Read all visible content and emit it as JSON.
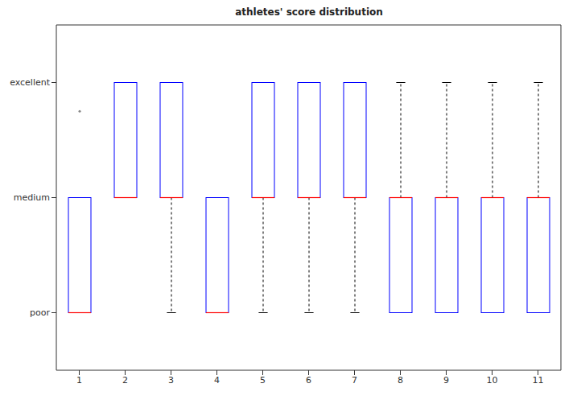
{
  "chart_data": {
    "type": "box",
    "title": "athletes' score distribution",
    "categories": [
      "1",
      "2",
      "3",
      "4",
      "5",
      "6",
      "7",
      "8",
      "9",
      "10",
      "11"
    ],
    "boxes": [
      {
        "min": 1,
        "q1": 1,
        "median": 1,
        "q3": 2,
        "max": 2,
        "outliers": [
          2.75
        ]
      },
      {
        "min": 2,
        "q1": 2,
        "median": 2,
        "q3": 3,
        "max": 3,
        "outliers": []
      },
      {
        "min": 1,
        "q1": 2,
        "median": 2,
        "q3": 3,
        "max": 3,
        "outliers": []
      },
      {
        "min": 1,
        "q1": 1,
        "median": 1,
        "q3": 2,
        "max": 2,
        "outliers": []
      },
      {
        "min": 1,
        "q1": 2,
        "median": 2,
        "q3": 3,
        "max": 3,
        "outliers": []
      },
      {
        "min": 1,
        "q1": 2,
        "median": 2,
        "q3": 3,
        "max": 3,
        "outliers": []
      },
      {
        "min": 1,
        "q1": 2,
        "median": 2,
        "q3": 3,
        "max": 3,
        "outliers": []
      },
      {
        "min": 1,
        "q1": 1,
        "median": 2,
        "q3": 2,
        "max": 3,
        "outliers": []
      },
      {
        "min": 1,
        "q1": 1,
        "median": 2,
        "q3": 2,
        "max": 3,
        "outliers": []
      },
      {
        "min": 1,
        "q1": 1,
        "median": 2,
        "q3": 2,
        "max": 3,
        "outliers": []
      },
      {
        "min": 1,
        "q1": 1,
        "median": 2,
        "q3": 2,
        "max": 3,
        "outliers": []
      }
    ],
    "ylim": [
      0.5,
      3.5
    ],
    "yticks": [
      {
        "value": 1,
        "label": "poor"
      },
      {
        "value": 2,
        "label": "medium"
      },
      {
        "value": 3,
        "label": "excellent"
      }
    ],
    "color": "#0000ff"
  }
}
